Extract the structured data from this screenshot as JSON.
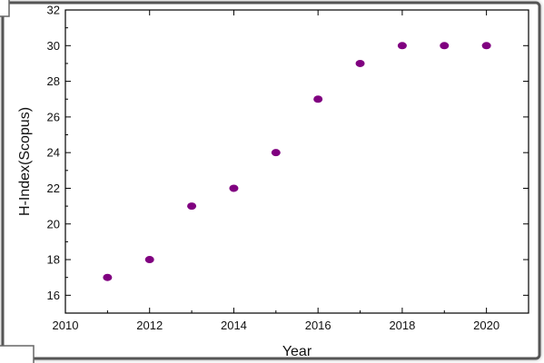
{
  "chart_data": {
    "type": "scatter",
    "x": [
      2011,
      2012,
      2013,
      2014,
      2015,
      2016,
      2017,
      2018,
      2019,
      2020
    ],
    "y": [
      17,
      18,
      21,
      22,
      24,
      27,
      29,
      30,
      30,
      30
    ],
    "xlabel": "Year",
    "ylabel": "H-Index(Scopus)",
    "xlim": [
      2010,
      2021
    ],
    "ylim": [
      15,
      32
    ],
    "x_ticks": [
      2010,
      2012,
      2014,
      2016,
      2018,
      2020
    ],
    "y_ticks": [
      16,
      18,
      20,
      22,
      24,
      26,
      28,
      30,
      32
    ],
    "marker_color": "#800080",
    "grid": false,
    "legend": "none"
  }
}
